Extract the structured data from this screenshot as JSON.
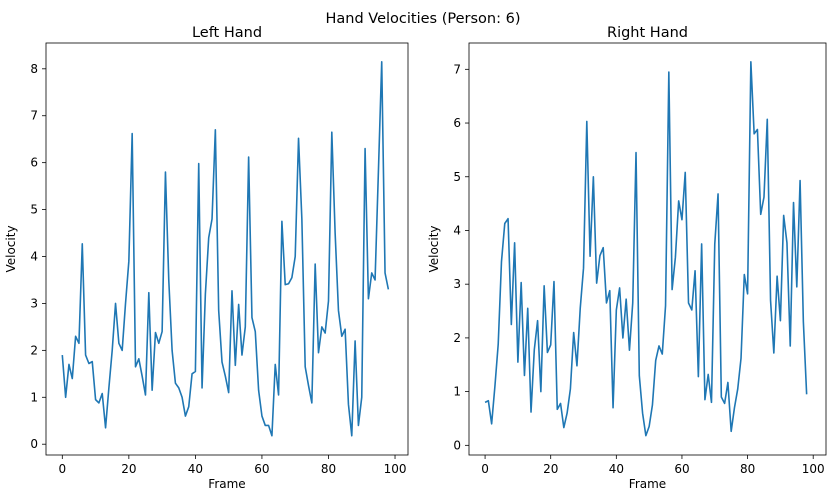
{
  "suptitle": "Hand Velocities (Person: 6)",
  "chart_data": [
    {
      "type": "line",
      "title": "Left Hand",
      "xlabel": "Frame",
      "ylabel": "Velocity",
      "xlim": [
        -4.9,
        103.9
      ],
      "ylim": [
        -0.23,
        8.55
      ],
      "xticks": [
        0,
        20,
        40,
        60,
        80,
        100
      ],
      "yticks": [
        0,
        1,
        2,
        3,
        4,
        5,
        6,
        7,
        8
      ],
      "grid": false,
      "color": "#1f77b4",
      "x_start": 0,
      "values": [
        1.9,
        1.0,
        1.7,
        1.4,
        2.3,
        2.15,
        4.27,
        1.9,
        1.72,
        1.76,
        0.95,
        0.88,
        1.08,
        0.35,
        1.2,
        2.0,
        3.0,
        2.15,
        2.0,
        3.0,
        3.9,
        6.62,
        1.65,
        1.82,
        1.45,
        1.05,
        3.23,
        1.15,
        2.38,
        2.15,
        2.4,
        5.8,
        3.5,
        2.0,
        1.3,
        1.2,
        1.0,
        0.6,
        0.8,
        1.5,
        1.55,
        5.98,
        1.2,
        3.2,
        4.4,
        4.8,
        6.7,
        2.85,
        1.75,
        1.45,
        1.1,
        3.27,
        1.68,
        2.98,
        1.9,
        2.5,
        6.12,
        2.7,
        2.4,
        1.15,
        0.6,
        0.4,
        0.4,
        0.18,
        1.7,
        1.05,
        4.75,
        3.4,
        3.42,
        3.55,
        4.0,
        6.52,
        4.8,
        1.65,
        1.25,
        0.88,
        3.84,
        1.95,
        2.5,
        2.37,
        3.05,
        6.65,
        4.5,
        2.85,
        2.3,
        2.45,
        0.85,
        0.18,
        2.2,
        0.4,
        1.0,
        6.3,
        3.1,
        3.65,
        3.5,
        5.8,
        8.15,
        3.65,
        3.3
      ]
    },
    {
      "type": "line",
      "title": "Right Hand",
      "xlabel": "Frame",
      "ylabel": "Velocity",
      "xlim": [
        -4.9,
        103.9
      ],
      "ylim": [
        -0.18,
        7.49
      ],
      "xticks": [
        0,
        20,
        40,
        60,
        80,
        100
      ],
      "yticks": [
        0,
        1,
        2,
        3,
        4,
        5,
        6,
        7
      ],
      "grid": false,
      "color": "#1f77b4",
      "x_start": 0,
      "values": [
        0.8,
        0.83,
        0.4,
        1.1,
        1.88,
        3.42,
        4.13,
        4.22,
        2.25,
        3.77,
        1.55,
        3.03,
        1.3,
        2.55,
        0.62,
        1.78,
        2.32,
        1.0,
        2.97,
        1.73,
        1.87,
        3.05,
        0.67,
        0.78,
        0.33,
        0.6,
        1.05,
        2.1,
        1.48,
        2.55,
        3.3,
        6.03,
        3.52,
        5.0,
        3.02,
        3.53,
        3.68,
        2.65,
        2.88,
        0.7,
        2.52,
        2.93,
        2.0,
        2.72,
        1.77,
        2.65,
        5.45,
        1.3,
        0.6,
        0.18,
        0.35,
        0.75,
        1.58,
        1.85,
        1.7,
        2.6,
        6.95,
        2.9,
        3.5,
        4.55,
        4.2,
        5.08,
        2.65,
        2.52,
        3.25,
        1.28,
        3.75,
        0.85,
        1.32,
        0.8,
        3.75,
        4.68,
        0.9,
        0.78,
        1.17,
        0.26,
        0.7,
        1.05,
        1.62,
        3.18,
        2.82,
        7.14,
        5.8,
        5.88,
        4.3,
        4.62,
        6.07,
        2.7,
        1.72,
        3.15,
        2.32,
        4.28,
        3.77,
        1.85,
        4.52,
        2.95,
        4.93,
        2.3,
        0.95
      ]
    }
  ]
}
